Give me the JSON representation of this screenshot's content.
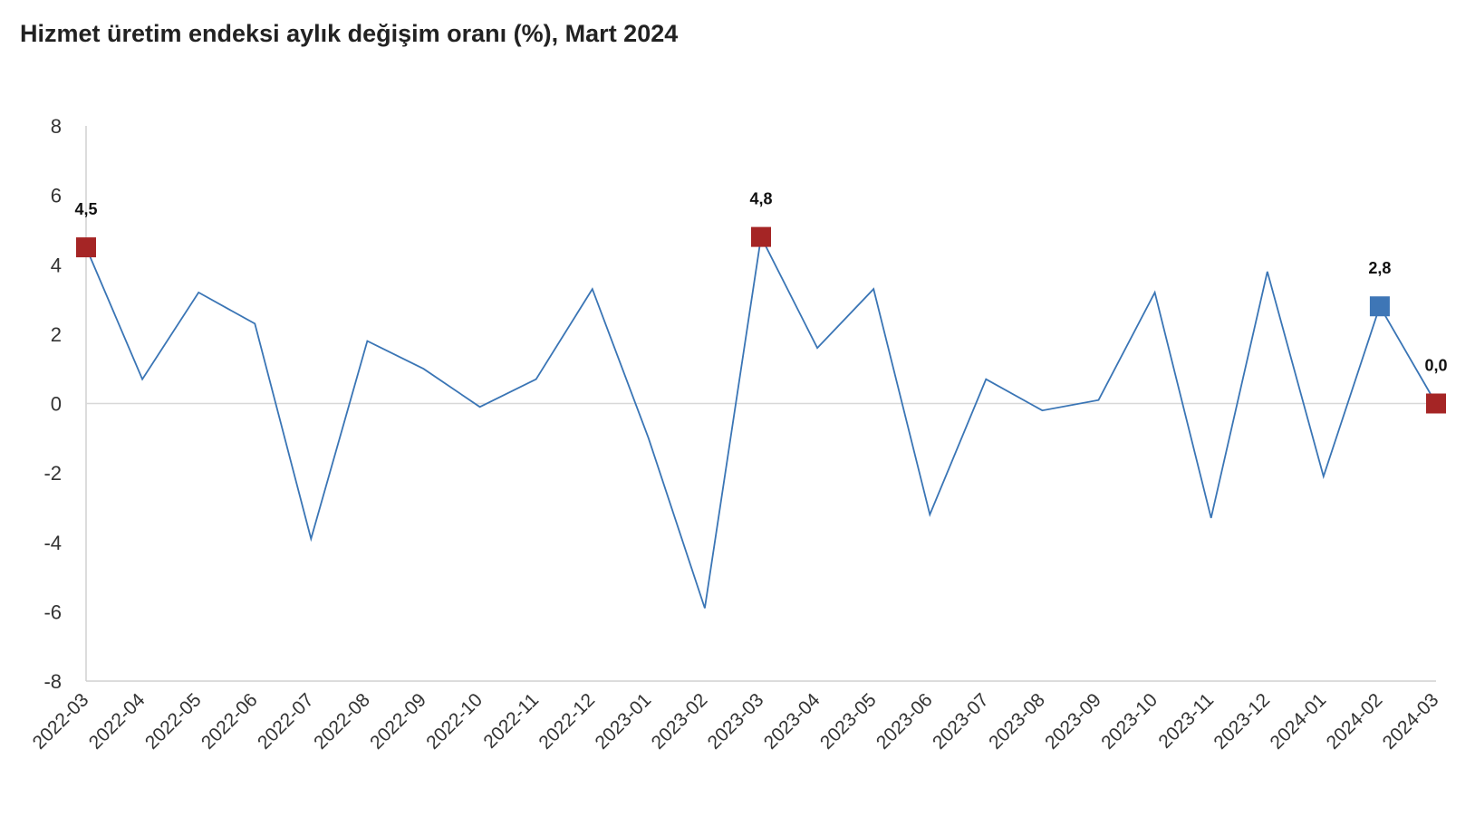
{
  "chart_data": {
    "type": "line",
    "title": "Hizmet üretim endeksi aylık değişim oranı (%), Mart 2024",
    "xlabel": "",
    "ylabel": "",
    "ylim": [
      -8,
      8
    ],
    "yticks": [
      8,
      6,
      4,
      2,
      0,
      -2,
      -4,
      -6,
      -8
    ],
    "grid": false,
    "categories": [
      "2022-03",
      "2022-04",
      "2022-05",
      "2022-06",
      "2022-07",
      "2022-08",
      "2022-09",
      "2022-10",
      "2022-11",
      "2022-12",
      "2023-01",
      "2023-02",
      "2023-03",
      "2023-04",
      "2023-05",
      "2023-06",
      "2023-07",
      "2023-08",
      "2023-09",
      "2023-10",
      "2023-11",
      "2023-12",
      "2024-01",
      "2024-02",
      "2024-03"
    ],
    "series": [
      {
        "values": [
          4.5,
          0.7,
          3.2,
          2.3,
          -3.9,
          1.8,
          1.0,
          -0.1,
          0.7,
          3.3,
          -1.0,
          -5.9,
          4.8,
          1.6,
          3.3,
          -3.2,
          0.7,
          -0.2,
          0.1,
          3.2,
          -3.3,
          3.8,
          -2.1,
          2.8,
          0.0
        ],
        "color": "#3a75b5"
      }
    ],
    "highlights": [
      {
        "category": "2022-03",
        "value": 4.5,
        "label": "4,5",
        "color": "#a52525"
      },
      {
        "category": "2023-03",
        "value": 4.8,
        "label": "4,8",
        "color": "#a52525"
      },
      {
        "category": "2024-02",
        "value": 2.8,
        "label": "2,8",
        "color": "#3e76b6"
      },
      {
        "category": "2024-03",
        "value": 0.0,
        "label": "0,0",
        "color": "#a52525"
      }
    ],
    "zero_line_color": "#d8d8d8",
    "axis_color": "#d0d0d0"
  }
}
